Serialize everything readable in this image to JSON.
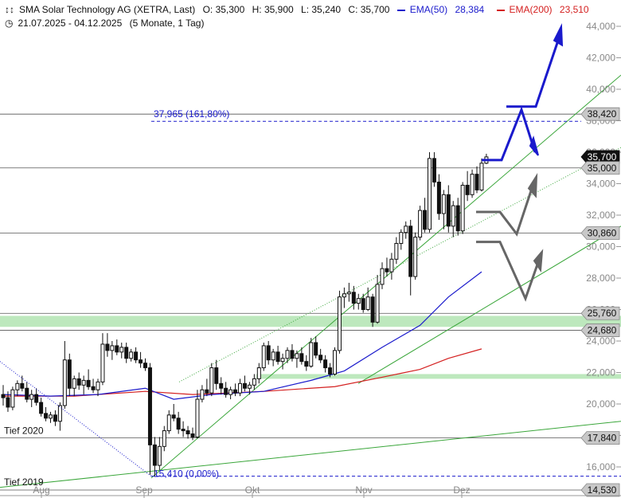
{
  "header": {
    "instrument": "SMA Solar Technology AG (XETRA, Last)",
    "open": "O: 35,300",
    "high": "H: 35,900",
    "low": "L: 35,240",
    "close": "C: 35,700",
    "ema50_label": "EMA(50)",
    "ema50_value": "28,384",
    "ema200_label": "EMA(200)",
    "ema200_value": "23,510",
    "date_range": "21.07.2025 - 04.12.2025",
    "period": "(5 Monate, 1 Tag)"
  },
  "colors": {
    "ema50": "#1a1acc",
    "ema200": "#d42020",
    "support_zone": "#bde8bd",
    "trendline": "#3aa63a",
    "projection_blue": "#1a1acc",
    "projection_gray": "#666666",
    "fib_line": "#1a1acc"
  },
  "chart_data": {
    "type": "candlestick",
    "ylim": [
      14.0,
      45.0
    ],
    "y_ticks": [
      "16,000",
      "18,000",
      "20,000",
      "22,000",
      "24,000",
      "26,000",
      "28,000",
      "30,000",
      "32,000",
      "34,000",
      "36,000",
      "38,000",
      "40,000",
      "42,000",
      "44,000"
    ],
    "x_labels": [
      {
        "label": "Aug",
        "date": "2025-08-01"
      },
      {
        "label": "Sep",
        "date": "2025-09-01"
      },
      {
        "label": "Okt",
        "date": "2025-10-01"
      },
      {
        "label": "Nov",
        "date": "2025-11-03"
      },
      {
        "label": "Dez",
        "date": "2025-12-01"
      }
    ],
    "candles": [
      {
        "o": 20.6,
        "h": 21.2,
        "l": 19.9,
        "c": 20.4
      },
      {
        "o": 20.4,
        "h": 20.8,
        "l": 19.5,
        "c": 19.8
      },
      {
        "o": 19.8,
        "h": 21.1,
        "l": 19.6,
        "c": 20.9
      },
      {
        "o": 20.9,
        "h": 21.5,
        "l": 20.5,
        "c": 21.3
      },
      {
        "o": 21.3,
        "h": 21.8,
        "l": 20.8,
        "c": 21.0
      },
      {
        "o": 21.0,
        "h": 21.4,
        "l": 20.1,
        "c": 20.3
      },
      {
        "o": 20.3,
        "h": 20.9,
        "l": 19.8,
        "c": 20.6
      },
      {
        "o": 20.6,
        "h": 21.0,
        "l": 19.9,
        "c": 20.1
      },
      {
        "o": 20.1,
        "h": 20.4,
        "l": 19.2,
        "c": 19.4
      },
      {
        "o": 19.4,
        "h": 19.8,
        "l": 18.9,
        "c": 19.1
      },
      {
        "o": 19.1,
        "h": 19.5,
        "l": 18.8,
        "c": 19.3
      },
      {
        "o": 19.3,
        "h": 19.6,
        "l": 18.6,
        "c": 18.9
      },
      {
        "o": 18.9,
        "h": 20.1,
        "l": 18.3,
        "c": 19.9
      },
      {
        "o": 19.9,
        "h": 24.0,
        "l": 19.7,
        "c": 22.8
      },
      {
        "o": 22.8,
        "h": 23.2,
        "l": 20.5,
        "c": 21.0
      },
      {
        "o": 21.0,
        "h": 21.8,
        "l": 20.5,
        "c": 21.6
      },
      {
        "o": 21.6,
        "h": 22.0,
        "l": 20.9,
        "c": 21.2
      },
      {
        "o": 21.2,
        "h": 21.8,
        "l": 20.6,
        "c": 21.5
      },
      {
        "o": 21.5,
        "h": 22.2,
        "l": 20.9,
        "c": 21.1
      },
      {
        "o": 21.1,
        "h": 21.6,
        "l": 20.7,
        "c": 20.9
      },
      {
        "o": 20.9,
        "h": 21.6,
        "l": 20.5,
        "c": 21.4
      },
      {
        "o": 21.4,
        "h": 24.5,
        "l": 21.2,
        "c": 23.8
      },
      {
        "o": 23.8,
        "h": 24.5,
        "l": 23.0,
        "c": 23.4
      },
      {
        "o": 23.4,
        "h": 24.0,
        "l": 22.8,
        "c": 23.7
      },
      {
        "o": 23.7,
        "h": 24.1,
        "l": 23.1,
        "c": 23.3
      },
      {
        "o": 23.3,
        "h": 23.9,
        "l": 22.9,
        "c": 23.6
      },
      {
        "o": 23.6,
        "h": 23.9,
        "l": 22.6,
        "c": 22.9
      },
      {
        "o": 22.9,
        "h": 23.5,
        "l": 22.7,
        "c": 23.3
      },
      {
        "o": 23.3,
        "h": 23.6,
        "l": 22.6,
        "c": 22.8
      },
      {
        "o": 22.8,
        "h": 23.3,
        "l": 22.3,
        "c": 22.6
      },
      {
        "o": 22.6,
        "h": 22.9,
        "l": 22.1,
        "c": 22.3
      },
      {
        "o": 22.3,
        "h": 22.6,
        "l": 15.5,
        "c": 17.4
      },
      {
        "o": 17.4,
        "h": 17.9,
        "l": 15.4,
        "c": 16.1
      },
      {
        "o": 16.1,
        "h": 17.9,
        "l": 15.8,
        "c": 17.3
      },
      {
        "o": 17.3,
        "h": 18.6,
        "l": 17.0,
        "c": 18.3
      },
      {
        "o": 18.3,
        "h": 19.6,
        "l": 18.1,
        "c": 19.3
      },
      {
        "o": 19.3,
        "h": 20.0,
        "l": 18.9,
        "c": 19.1
      },
      {
        "o": 19.1,
        "h": 19.5,
        "l": 18.1,
        "c": 18.4
      },
      {
        "o": 18.4,
        "h": 18.9,
        "l": 17.9,
        "c": 18.3
      },
      {
        "o": 18.3,
        "h": 18.6,
        "l": 17.8,
        "c": 18.1
      },
      {
        "o": 18.1,
        "h": 18.5,
        "l": 17.7,
        "c": 17.9
      },
      {
        "o": 17.9,
        "h": 20.9,
        "l": 17.8,
        "c": 20.3
      },
      {
        "o": 20.3,
        "h": 21.2,
        "l": 20.1,
        "c": 20.9
      },
      {
        "o": 20.9,
        "h": 21.6,
        "l": 20.5,
        "c": 20.7
      },
      {
        "o": 20.7,
        "h": 22.6,
        "l": 20.5,
        "c": 22.3
      },
      {
        "o": 22.3,
        "h": 22.8,
        "l": 20.9,
        "c": 21.3
      },
      {
        "o": 21.3,
        "h": 21.7,
        "l": 20.6,
        "c": 21.0
      },
      {
        "o": 21.0,
        "h": 21.4,
        "l": 20.4,
        "c": 20.6
      },
      {
        "o": 20.6,
        "h": 21.1,
        "l": 20.3,
        "c": 20.9
      },
      {
        "o": 20.9,
        "h": 21.3,
        "l": 20.5,
        "c": 20.7
      },
      {
        "o": 20.7,
        "h": 21.6,
        "l": 20.5,
        "c": 21.3
      },
      {
        "o": 21.3,
        "h": 21.8,
        "l": 20.8,
        "c": 21.0
      },
      {
        "o": 21.0,
        "h": 21.4,
        "l": 20.6,
        "c": 21.2
      },
      {
        "o": 21.2,
        "h": 21.9,
        "l": 20.9,
        "c": 21.6
      },
      {
        "o": 21.6,
        "h": 22.6,
        "l": 21.3,
        "c": 22.3
      },
      {
        "o": 22.3,
        "h": 23.9,
        "l": 22.1,
        "c": 23.7
      },
      {
        "o": 23.7,
        "h": 24.0,
        "l": 22.5,
        "c": 22.8
      },
      {
        "o": 22.8,
        "h": 23.5,
        "l": 22.4,
        "c": 23.3
      },
      {
        "o": 23.3,
        "h": 23.7,
        "l": 22.5,
        "c": 22.7
      },
      {
        "o": 22.7,
        "h": 23.2,
        "l": 22.2,
        "c": 22.9
      },
      {
        "o": 22.9,
        "h": 23.6,
        "l": 22.6,
        "c": 23.4
      },
      {
        "o": 23.4,
        "h": 23.8,
        "l": 22.7,
        "c": 22.9
      },
      {
        "o": 22.9,
        "h": 23.4,
        "l": 22.3,
        "c": 23.2
      },
      {
        "o": 23.2,
        "h": 23.6,
        "l": 22.5,
        "c": 22.7
      },
      {
        "o": 22.7,
        "h": 23.1,
        "l": 22.1,
        "c": 22.4
      },
      {
        "o": 22.4,
        "h": 24.2,
        "l": 22.3,
        "c": 23.9
      },
      {
        "o": 23.9,
        "h": 24.3,
        "l": 22.9,
        "c": 23.1
      },
      {
        "o": 23.1,
        "h": 23.5,
        "l": 22.6,
        "c": 22.8
      },
      {
        "o": 22.8,
        "h": 23.1,
        "l": 22.0,
        "c": 22.3
      },
      {
        "o": 22.3,
        "h": 22.6,
        "l": 21.7,
        "c": 21.9
      },
      {
        "o": 21.9,
        "h": 23.6,
        "l": 21.8,
        "c": 23.4
      },
      {
        "o": 23.4,
        "h": 27.2,
        "l": 23.2,
        "c": 26.8
      },
      {
        "o": 26.8,
        "h": 27.4,
        "l": 26.1,
        "c": 27.0
      },
      {
        "o": 27.0,
        "h": 27.7,
        "l": 26.5,
        "c": 27.1
      },
      {
        "o": 27.1,
        "h": 27.5,
        "l": 26.0,
        "c": 26.4
      },
      {
        "o": 26.4,
        "h": 27.0,
        "l": 26.0,
        "c": 26.7
      },
      {
        "o": 26.7,
        "h": 27.0,
        "l": 25.8,
        "c": 26.0
      },
      {
        "o": 26.0,
        "h": 27.4,
        "l": 25.9,
        "c": 26.8
      },
      {
        "o": 26.8,
        "h": 27.0,
        "l": 24.9,
        "c": 25.2
      },
      {
        "o": 25.2,
        "h": 28.2,
        "l": 25.1,
        "c": 27.6
      },
      {
        "o": 27.6,
        "h": 29.0,
        "l": 27.3,
        "c": 28.6
      },
      {
        "o": 28.6,
        "h": 29.3,
        "l": 28.1,
        "c": 28.4
      },
      {
        "o": 28.4,
        "h": 29.6,
        "l": 27.9,
        "c": 29.2
      },
      {
        "o": 29.2,
        "h": 30.6,
        "l": 28.9,
        "c": 30.2
      },
      {
        "o": 30.2,
        "h": 31.1,
        "l": 29.8,
        "c": 30.9
      },
      {
        "o": 30.9,
        "h": 31.6,
        "l": 30.5,
        "c": 31.3
      },
      {
        "o": 31.3,
        "h": 31.7,
        "l": 26.9,
        "c": 28.1
      },
      {
        "o": 28.1,
        "h": 30.9,
        "l": 27.9,
        "c": 30.6
      },
      {
        "o": 30.6,
        "h": 32.6,
        "l": 30.4,
        "c": 32.3
      },
      {
        "o": 32.3,
        "h": 33.1,
        "l": 30.9,
        "c": 31.1
      },
      {
        "o": 31.1,
        "h": 36.0,
        "l": 30.9,
        "c": 35.6
      },
      {
        "o": 35.6,
        "h": 36.0,
        "l": 33.8,
        "c": 34.1
      },
      {
        "o": 34.1,
        "h": 34.6,
        "l": 31.7,
        "c": 32.1
      },
      {
        "o": 32.1,
        "h": 33.6,
        "l": 31.1,
        "c": 33.3
      },
      {
        "o": 33.3,
        "h": 33.9,
        "l": 30.9,
        "c": 31.3
      },
      {
        "o": 31.3,
        "h": 32.9,
        "l": 30.6,
        "c": 32.6
      },
      {
        "o": 32.6,
        "h": 33.1,
        "l": 30.7,
        "c": 31.0
      },
      {
        "o": 31.0,
        "h": 34.1,
        "l": 30.8,
        "c": 33.9
      },
      {
        "o": 33.9,
        "h": 34.8,
        "l": 32.9,
        "c": 33.3
      },
      {
        "o": 33.3,
        "h": 34.9,
        "l": 33.1,
        "c": 34.6
      },
      {
        "o": 34.6,
        "h": 35.1,
        "l": 33.4,
        "c": 33.6
      },
      {
        "o": 33.6,
        "h": 35.6,
        "l": 33.5,
        "c": 35.3
      },
      {
        "o": 35.3,
        "h": 35.9,
        "l": 35.24,
        "c": 35.7
      }
    ],
    "ema50": [
      [
        0,
        20.6
      ],
      [
        10,
        20.5
      ],
      [
        20,
        20.6
      ],
      [
        30,
        21.0
      ],
      [
        36,
        20.3
      ],
      [
        44,
        20.6
      ],
      [
        55,
        20.8
      ],
      [
        65,
        21.5
      ],
      [
        72,
        22.1
      ],
      [
        80,
        23.6
      ],
      [
        88,
        25.0
      ],
      [
        94,
        26.8
      ],
      [
        101,
        28.4
      ]
    ],
    "ema200": [
      [
        0,
        20.5
      ],
      [
        15,
        20.5
      ],
      [
        30,
        20.8
      ],
      [
        40,
        20.6
      ],
      [
        55,
        20.8
      ],
      [
        70,
        21.1
      ],
      [
        80,
        21.7
      ],
      [
        88,
        22.2
      ],
      [
        94,
        22.9
      ],
      [
        101,
        23.5
      ]
    ],
    "price_tags": [
      "38,420",
      "35,700",
      "35,000",
      "30,860",
      "25,760",
      "24,680",
      "17,840",
      "14,530"
    ],
    "horizontal_levels": [
      38.42,
      35.0,
      30.86,
      25.76,
      24.68,
      17.84,
      14.53
    ],
    "fib_target": {
      "label": "37,965 (161,80%)",
      "value": 37.965
    },
    "fib_base": {
      "label": "15,410 (0,00%)",
      "value": 15.41
    },
    "zones": [
      [
        24.9,
        25.6
      ],
      [
        21.6,
        21.9
      ]
    ],
    "annotations": [
      "Tief 2020",
      "Tief 2019"
    ]
  }
}
